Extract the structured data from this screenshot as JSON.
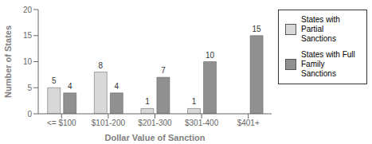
{
  "chart_data": {
    "type": "bar",
    "categories": [
      "<= $100",
      "$101-200",
      "$201-300",
      "$301-400",
      "$401+"
    ],
    "series": [
      {
        "name": "States with Partial\nSanctions",
        "color": "#d8d8d8",
        "values": [
          5,
          8,
          1,
          1,
          0
        ]
      },
      {
        "name": "States with Full\nFamily Sanctions",
        "color": "#909090",
        "values": [
          4,
          4,
          7,
          10,
          15
        ]
      }
    ],
    "xlabel": "Dollar Value of Sanction",
    "ylabel": "Number of States",
    "ylim": [
      0,
      20
    ],
    "yticks": [
      0,
      5,
      10,
      15,
      20
    ],
    "data_labels": true,
    "legend": "right",
    "grid": false
  }
}
